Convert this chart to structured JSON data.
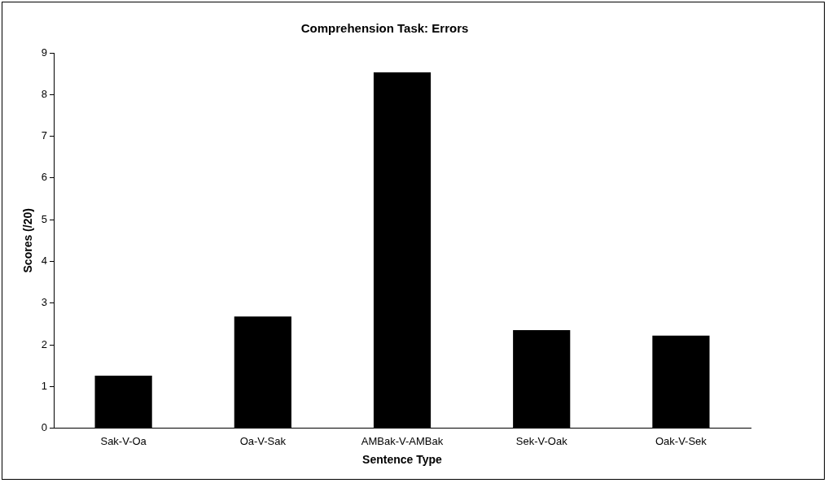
{
  "chart_data": {
    "type": "bar",
    "title": "Comprehension Task: Errors",
    "xlabel": "Sentence Type",
    "ylabel": "Scores (/20)",
    "categories": [
      "Sak-V-Oa",
      "Oa-V-Sak",
      "AMBak-V-AMBak",
      "Sek-V-Oak",
      "Oak-V-Sek"
    ],
    "values": [
      1.26,
      2.68,
      8.53,
      2.35,
      2.22
    ],
    "color": "#000000",
    "ylim": [
      0,
      9
    ],
    "yticks": [
      0,
      1,
      2,
      3,
      4,
      5,
      6,
      7,
      8,
      9
    ],
    "grid": false,
    "legend": false
  }
}
